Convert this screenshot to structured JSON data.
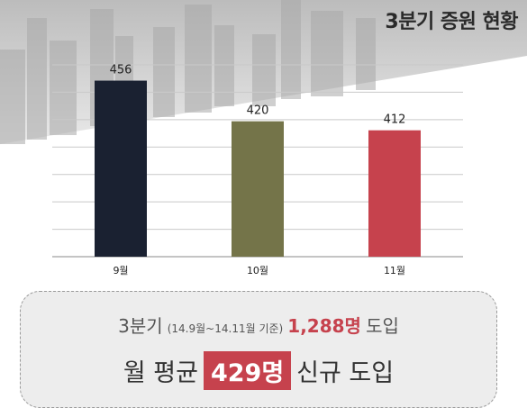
{
  "title": "3분기 증원 현황",
  "chart_data": {
    "type": "bar",
    "categories": [
      "9월",
      "10월",
      "11월"
    ],
    "values": [
      456,
      420,
      412
    ],
    "colors": [
      "#1a2131",
      "#747449",
      "#c6424d"
    ],
    "data_labels": [
      "456",
      "420",
      "412"
    ],
    "ylim": [
      300,
      470
    ],
    "grid": true,
    "legend": "none"
  },
  "summary": {
    "quarter": "3분기",
    "period": "(14.9월~14.11월 기준)",
    "total": "1,288명",
    "adopt": "도입",
    "monthly_avg_label": "월 평균",
    "monthly_avg_value": "429명",
    "new_adopt": "신규 도입"
  }
}
